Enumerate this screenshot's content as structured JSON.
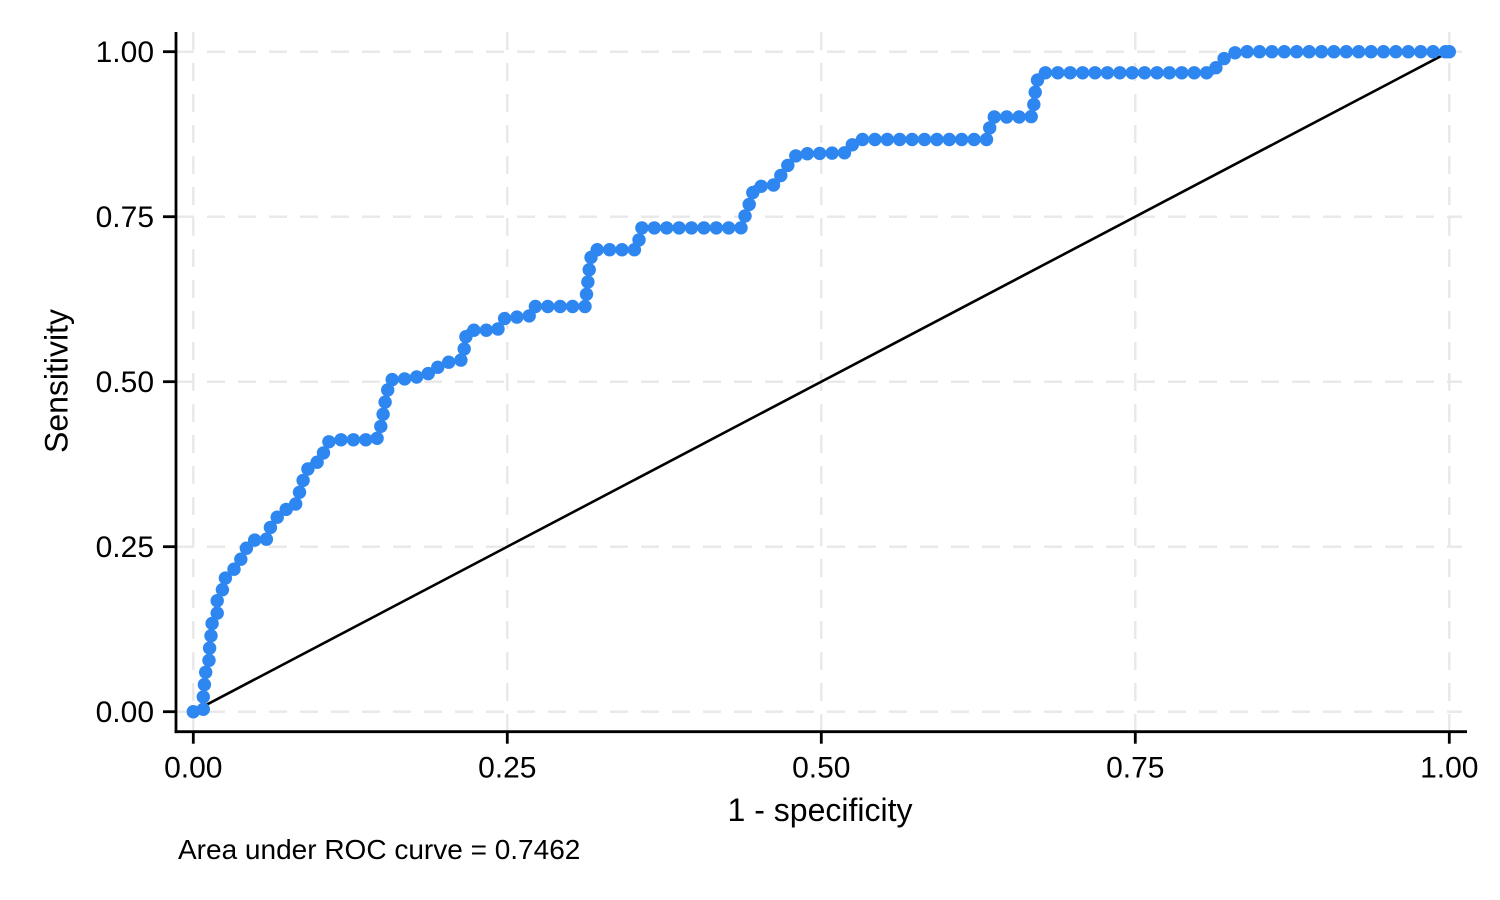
{
  "chart_data": {
    "type": "line",
    "subtype": "roc-curve",
    "title": "",
    "xlabel": "1 - specificity",
    "ylabel": "Sensitivity",
    "note": "Area under ROC curve = 0.7462",
    "auc": 0.7462,
    "xlim": [
      0,
      1
    ],
    "ylim": [
      0,
      1
    ],
    "grid": "dashed",
    "legend": "none",
    "x_ticks": [
      {
        "value": 0.0,
        "label": "0.00"
      },
      {
        "value": 0.25,
        "label": "0.25"
      },
      {
        "value": 0.5,
        "label": "0.50"
      },
      {
        "value": 0.75,
        "label": "0.75"
      },
      {
        "value": 1.0,
        "label": "1.00"
      }
    ],
    "y_ticks": [
      {
        "value": 0.0,
        "label": "0.00"
      },
      {
        "value": 0.25,
        "label": "0.25"
      },
      {
        "value": 0.5,
        "label": "0.50"
      },
      {
        "value": 0.75,
        "label": "0.75"
      },
      {
        "value": 1.0,
        "label": "1.00"
      }
    ],
    "series": [
      {
        "name": "ROC curve",
        "color": "#2E86F0",
        "marker": "circle",
        "marker_radius": 6.7,
        "marker_spacing_px": 12.4,
        "line_width": 4,
        "points": [
          [
            0.0,
            0.0
          ],
          [
            0.008,
            0.0
          ],
          [
            0.008,
            0.03
          ],
          [
            0.009,
            0.043
          ],
          [
            0.01,
            0.063
          ],
          [
            0.013,
            0.081
          ],
          [
            0.013,
            0.104
          ],
          [
            0.015,
            0.124
          ],
          [
            0.015,
            0.139
          ],
          [
            0.019,
            0.147
          ],
          [
            0.019,
            0.169
          ],
          [
            0.023,
            0.182
          ],
          [
            0.024,
            0.199
          ],
          [
            0.03,
            0.212
          ],
          [
            0.036,
            0.222
          ],
          [
            0.039,
            0.237
          ],
          [
            0.043,
            0.25
          ],
          [
            0.047,
            0.26
          ],
          [
            0.058,
            0.26
          ],
          [
            0.061,
            0.278
          ],
          [
            0.066,
            0.293
          ],
          [
            0.072,
            0.306
          ],
          [
            0.08,
            0.308
          ],
          [
            0.083,
            0.321
          ],
          [
            0.085,
            0.336
          ],
          [
            0.087,
            0.348
          ],
          [
            0.09,
            0.364
          ],
          [
            0.094,
            0.376
          ],
          [
            0.101,
            0.379
          ],
          [
            0.104,
            0.394
          ],
          [
            0.108,
            0.409
          ],
          [
            0.113,
            0.412
          ],
          [
            0.146,
            0.412
          ],
          [
            0.148,
            0.424
          ],
          [
            0.15,
            0.437
          ],
          [
            0.151,
            0.449
          ],
          [
            0.152,
            0.465
          ],
          [
            0.154,
            0.477
          ],
          [
            0.155,
            0.49
          ],
          [
            0.157,
            0.503
          ],
          [
            0.176,
            0.505
          ],
          [
            0.181,
            0.511
          ],
          [
            0.191,
            0.513
          ],
          [
            0.196,
            0.525
          ],
          [
            0.204,
            0.53
          ],
          [
            0.214,
            0.533
          ],
          [
            0.216,
            0.553
          ],
          [
            0.217,
            0.568
          ],
          [
            0.219,
            0.578
          ],
          [
            0.242,
            0.578
          ],
          [
            0.245,
            0.588
          ],
          [
            0.248,
            0.596
          ],
          [
            0.269,
            0.6
          ],
          [
            0.272,
            0.614
          ],
          [
            0.312,
            0.614
          ],
          [
            0.313,
            0.631
          ],
          [
            0.314,
            0.648
          ],
          [
            0.315,
            0.666
          ],
          [
            0.316,
            0.683
          ],
          [
            0.318,
            0.7
          ],
          [
            0.353,
            0.7
          ],
          [
            0.355,
            0.716
          ],
          [
            0.357,
            0.733
          ],
          [
            0.436,
            0.733
          ],
          [
            0.439,
            0.75
          ],
          [
            0.442,
            0.764
          ],
          [
            0.444,
            0.779
          ],
          [
            0.447,
            0.795
          ],
          [
            0.462,
            0.798
          ],
          [
            0.466,
            0.804
          ],
          [
            0.469,
            0.818
          ],
          [
            0.473,
            0.827
          ],
          [
            0.476,
            0.834
          ],
          [
            0.481,
            0.845
          ],
          [
            0.521,
            0.847
          ],
          [
            0.525,
            0.86
          ],
          [
            0.529,
            0.867
          ],
          [
            0.632,
            0.867
          ],
          [
            0.634,
            0.884
          ],
          [
            0.637,
            0.901
          ],
          [
            0.667,
            0.901
          ],
          [
            0.669,
            0.917
          ],
          [
            0.67,
            0.934
          ],
          [
            0.671,
            0.95
          ],
          [
            0.673,
            0.962
          ],
          [
            0.675,
            0.968
          ],
          [
            0.812,
            0.968
          ],
          [
            0.816,
            0.982
          ],
          [
            0.821,
            0.99
          ],
          [
            0.826,
            0.995
          ],
          [
            0.831,
            1.0
          ],
          [
            1.0,
            1.0
          ]
        ]
      },
      {
        "name": "reference line",
        "color": "#000000",
        "marker": "none",
        "line_width": 2.6,
        "points": [
          [
            0.0,
            0.0
          ],
          [
            1.0,
            1.0
          ]
        ]
      }
    ],
    "colors": {
      "curve": "#2E86F0",
      "reference": "#000000",
      "grid": "#e8e8e8",
      "axis": "#000000",
      "background": "#ffffff"
    }
  }
}
